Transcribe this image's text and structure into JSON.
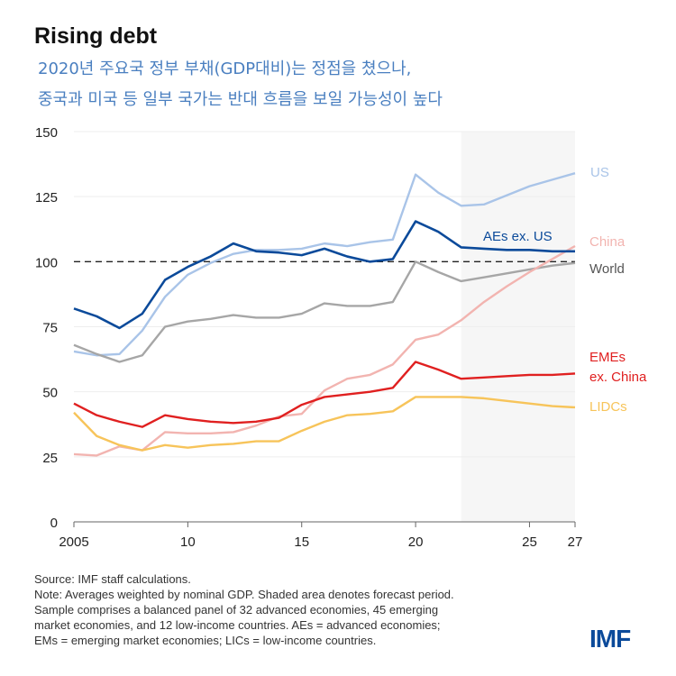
{
  "chart_data": {
    "type": "line",
    "title": "Rising debt",
    "subtitle": [
      "2020년 주요국 정부 부채(GDP대비)는 정점을 쳤으나,",
      "중국과 미국 등 일부 국가는 반대 흐름을 보일 가능성이 높다"
    ],
    "x": [
      2005,
      2006,
      2007,
      2008,
      2009,
      2010,
      2011,
      2012,
      2013,
      2014,
      2015,
      2016,
      2017,
      2018,
      2019,
      2020,
      2021,
      2022,
      2023,
      2024,
      2025,
      2026,
      2027
    ],
    "xlim": [
      2005,
      2027
    ],
    "xticks": [
      2005,
      2010,
      2015,
      2020,
      2025,
      2027
    ],
    "xtick_labels": [
      "2005",
      "10",
      "15",
      "20",
      "25",
      "27"
    ],
    "ylim": [
      0,
      150
    ],
    "yticks": [
      0,
      25,
      50,
      75,
      100,
      125,
      150
    ],
    "reference_line": 100,
    "forecast_shade": [
      2022,
      2027
    ],
    "grid": true,
    "series": [
      {
        "name": "US",
        "color": "#a9c4e8",
        "values": [
          65.5,
          64,
          64.5,
          73.5,
          86.5,
          95,
          99.5,
          103,
          104.5,
          104.5,
          105,
          107,
          106,
          107.5,
          108.5,
          133.5,
          126.5,
          121.5,
          122,
          125.5,
          129,
          131.5,
          134
        ]
      },
      {
        "name": "AEs ex. US",
        "color": "#0b4a9a",
        "values": [
          82,
          79,
          74.5,
          80,
          93,
          98,
          102,
          107,
          104,
          103.5,
          102.5,
          105,
          102,
          100,
          101,
          115.5,
          111.5,
          105.5,
          105,
          104.5,
          104.5,
          104,
          104
        ]
      },
      {
        "name": "China",
        "color": "#f2b4b0",
        "values": [
          26,
          25.5,
          29,
          27.5,
          34.5,
          34,
          34,
          34.5,
          37,
          40.5,
          41.5,
          50.5,
          55,
          56.5,
          60.5,
          70,
          72,
          77.5,
          84.5,
          90.5,
          96,
          101,
          106
        ]
      },
      {
        "name": "World",
        "color": "#a6a6a6",
        "values": [
          68,
          64.5,
          61.5,
          64,
          75,
          77,
          78,
          79.5,
          78.5,
          78.5,
          80,
          84,
          83,
          83,
          84.5,
          100,
          96,
          92.5,
          94,
          95.5,
          97,
          98.5,
          99.5
        ]
      },
      {
        "name": "EMEs ex. China",
        "color": "#e02020",
        "values": [
          45.5,
          41,
          38.5,
          36.5,
          41,
          39.5,
          38.5,
          38,
          38.5,
          40,
          45,
          48,
          49,
          50,
          51.5,
          61.5,
          58.5,
          55,
          55.5,
          56,
          56.5,
          56.5,
          57
        ]
      },
      {
        "name": "LIDCs",
        "color": "#f7c45a",
        "values": [
          42,
          33,
          29.5,
          27.5,
          29.5,
          28.5,
          29.5,
          30,
          31,
          31,
          35,
          38.5,
          41,
          41.5,
          42.5,
          48,
          48,
          48,
          47.5,
          46.5,
          45.5,
          44.5,
          44
        ]
      }
    ]
  },
  "notes": [
    "Source: IMF staff calculations.",
    "Note: Averages weighted by nominal GDP. Shaded area denotes forecast period.",
    "Sample comprises a balanced panel of 32 advanced economies, 45 emerging",
    "market economies, and 12 low-income countries. AEs = advanced economies;",
    "EMs = emerging market economies; LICs = low-income countries."
  ],
  "logo": "IMF"
}
